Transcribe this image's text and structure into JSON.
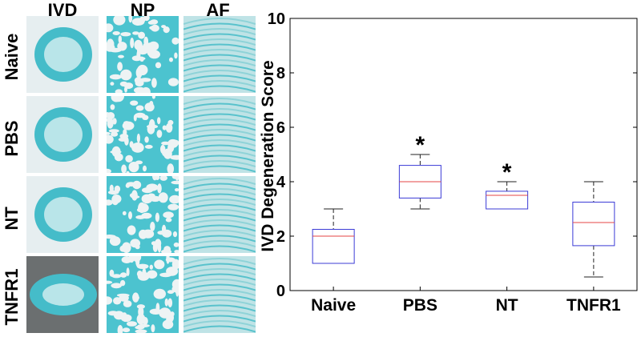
{
  "panel_a": {
    "column_headers": [
      "IVD",
      "NP",
      "AF"
    ],
    "row_headers": [
      "Naive",
      "PBS",
      "NT",
      "TNFR1"
    ]
  },
  "chart_data": {
    "type": "box",
    "categories": [
      "Naive",
      "PBS",
      "NT",
      "TNFR1"
    ],
    "ylabel": "IVD Degeneration Score",
    "xlabel": "",
    "ylim": [
      0,
      10
    ],
    "yticks": [
      0,
      2,
      4,
      6,
      8,
      10
    ],
    "grid": false,
    "boxes": [
      {
        "category": "Naive",
        "whisker_low": 1,
        "q1": 1,
        "median": 2,
        "q3": 2.25,
        "whisker_high": 3,
        "marker": ""
      },
      {
        "category": "PBS",
        "whisker_low": 3,
        "q1": 3.4,
        "median": 4,
        "q3": 4.6,
        "whisker_high": 5,
        "marker": "*"
      },
      {
        "category": "NT",
        "whisker_low": 3,
        "q1": 3,
        "median": 3.5,
        "q3": 3.65,
        "whisker_high": 4,
        "marker": "*"
      },
      {
        "category": "TNFR1",
        "whisker_low": 0.5,
        "q1": 1.65,
        "median": 2.5,
        "q3": 3.25,
        "whisker_high": 4,
        "marker": ""
      }
    ],
    "colors": {
      "box": "#3b3bd6",
      "median": "#e64646",
      "whisker": "#222222"
    }
  }
}
